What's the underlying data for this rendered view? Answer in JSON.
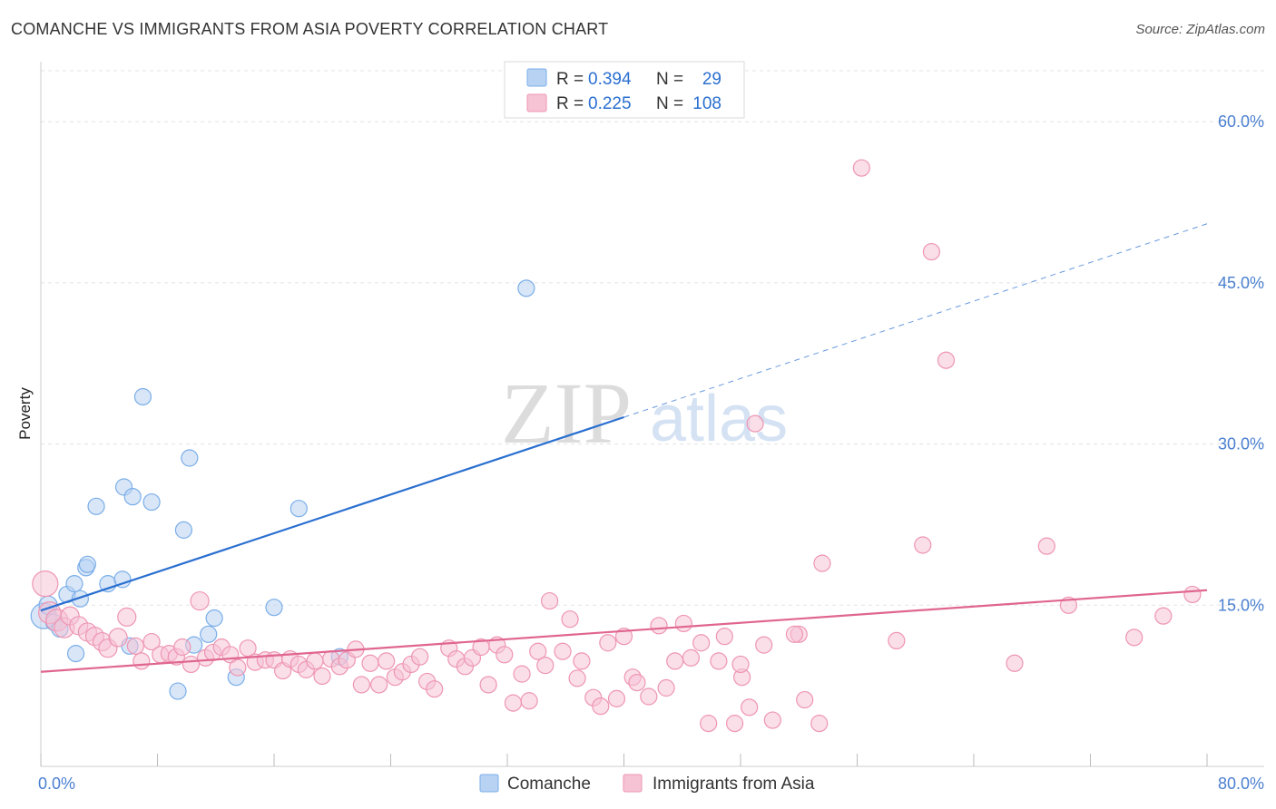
{
  "header": {
    "title": "COMANCHE VS IMMIGRANTS FROM ASIA POVERTY CORRELATION CHART",
    "source": "Source: ZipAtlas.com"
  },
  "watermark": {
    "zip": "ZIP",
    "atlas": "atlas"
  },
  "colors": {
    "blue": "#7aaee8",
    "blue_fill": "#b8d2f3",
    "blue_line": "#2a6fd0",
    "pink": "#ee95b3",
    "pink_fill": "#f6c3d5",
    "pink_line": "#e0668f",
    "tick_text": "#4a7fd0",
    "grid": "#e3e3e3"
  },
  "legend": {
    "rows": [
      {
        "r_label": "R = ",
        "r_value": "0.394",
        "n_label": "N = ",
        "n_value": "29"
      },
      {
        "r_label": "R = ",
        "r_value": "0.225",
        "n_label": "N = ",
        "n_value": "108"
      }
    ]
  },
  "bottom_legend": {
    "items": [
      "Comanche",
      "Immigrants from Asia"
    ]
  },
  "chart_data": {
    "type": "scatter",
    "title": "COMANCHE VS IMMIGRANTS FROM ASIA POVERTY CORRELATION CHART",
    "xlabel": "",
    "ylabel": "Poverty",
    "xlim": [
      0,
      80
    ],
    "ylim": [
      0,
      65
    ],
    "x_ticks": [
      "0.0%",
      "80.0%"
    ],
    "y_ticks": [
      {
        "value": 15,
        "label": "15.0%"
      },
      {
        "value": 30,
        "label": "30.0%"
      },
      {
        "value": 45,
        "label": "45.0%"
      },
      {
        "value": 60,
        "label": "60.0%"
      }
    ],
    "grid": true,
    "legend_position": "top-center",
    "series": [
      {
        "name": "Comanche",
        "r": 0.394,
        "n": 29,
        "trend": {
          "x0": 0,
          "y0": 14.5,
          "x1": 40,
          "y1": 32.5,
          "dashed_to_x": 80,
          "dashed_to_y": 50.5
        },
        "points": [
          [
            0.2,
            14.0,
            14
          ],
          [
            0.5,
            15.0,
            10
          ],
          [
            0.9,
            13.4,
            9
          ],
          [
            1.3,
            12.8,
            9
          ],
          [
            1.8,
            16.0,
            9
          ],
          [
            2.3,
            17.0,
            9
          ],
          [
            2.4,
            10.5,
            9
          ],
          [
            2.7,
            15.6,
            9
          ],
          [
            3.1,
            18.5,
            9
          ],
          [
            3.8,
            24.2,
            9
          ],
          [
            4.6,
            17.0,
            9
          ],
          [
            5.6,
            17.4,
            9
          ],
          [
            5.7,
            26.0,
            9
          ],
          [
            6.3,
            25.1,
            9
          ],
          [
            7.0,
            34.4,
            9
          ],
          [
            7.6,
            24.6,
            9
          ],
          [
            9.4,
            7.0,
            9
          ],
          [
            9.8,
            22.0,
            9
          ],
          [
            10.2,
            28.7,
            9
          ],
          [
            10.5,
            11.3,
            9
          ],
          [
            11.5,
            12.3,
            9
          ],
          [
            11.9,
            13.8,
            9
          ],
          [
            13.4,
            8.3,
            9
          ],
          [
            16.0,
            14.8,
            9
          ],
          [
            17.7,
            24.0,
            9
          ],
          [
            20.5,
            10.2,
            9
          ],
          [
            33.3,
            44.5,
            9
          ],
          [
            6.1,
            11.2,
            9
          ],
          [
            3.2,
            18.8,
            9
          ]
        ]
      },
      {
        "name": "Immigrants from Asia",
        "r": 0.225,
        "n": 108,
        "trend": {
          "x0": 0,
          "y0": 8.8,
          "x1": 80,
          "y1": 16.4
        },
        "points": [
          [
            0.3,
            17.0,
            14
          ],
          [
            0.6,
            14.3,
            12
          ],
          [
            1.1,
            13.6,
            12
          ],
          [
            1.6,
            12.9,
            11
          ],
          [
            2.0,
            14.0,
            10
          ],
          [
            2.6,
            13.1,
            10
          ],
          [
            3.2,
            12.5,
            10
          ],
          [
            3.7,
            12.1,
            10
          ],
          [
            4.2,
            11.6,
            10
          ],
          [
            4.6,
            11.0,
            10
          ],
          [
            5.3,
            12.0,
            10
          ],
          [
            5.9,
            13.9,
            10
          ],
          [
            6.5,
            11.2,
            9
          ],
          [
            6.9,
            9.8,
            9
          ],
          [
            7.6,
            11.6,
            9
          ],
          [
            8.2,
            10.4,
            9
          ],
          [
            8.8,
            10.5,
            9
          ],
          [
            9.3,
            10.2,
            9
          ],
          [
            9.7,
            11.1,
            9
          ],
          [
            10.3,
            9.5,
            9
          ],
          [
            10.9,
            15.4,
            10
          ],
          [
            11.3,
            10.1,
            9
          ],
          [
            11.8,
            10.6,
            9
          ],
          [
            12.4,
            11.1,
            9
          ],
          [
            13.0,
            10.4,
            9
          ],
          [
            13.5,
            9.2,
            9
          ],
          [
            14.2,
            11.0,
            9
          ],
          [
            14.7,
            9.7,
            9
          ],
          [
            15.4,
            9.9,
            9
          ],
          [
            16.0,
            9.9,
            9
          ],
          [
            16.6,
            8.9,
            9
          ],
          [
            17.1,
            10.0,
            9
          ],
          [
            17.7,
            9.5,
            9
          ],
          [
            18.2,
            9.0,
            9
          ],
          [
            18.8,
            9.8,
            9
          ],
          [
            19.3,
            8.4,
            9
          ],
          [
            19.9,
            10.0,
            9
          ],
          [
            20.5,
            9.3,
            9
          ],
          [
            21.0,
            9.9,
            9
          ],
          [
            21.6,
            10.9,
            9
          ],
          [
            22.0,
            7.6,
            9
          ],
          [
            22.6,
            9.6,
            9
          ],
          [
            23.2,
            7.6,
            9
          ],
          [
            23.7,
            9.8,
            9
          ],
          [
            24.3,
            8.3,
            9
          ],
          [
            24.8,
            8.8,
            9
          ],
          [
            25.4,
            9.5,
            9
          ],
          [
            26.0,
            10.2,
            9
          ],
          [
            26.5,
            7.9,
            9
          ],
          [
            27.0,
            7.2,
            9
          ],
          [
            28.0,
            11.0,
            9
          ],
          [
            28.5,
            10.0,
            9
          ],
          [
            29.1,
            9.3,
            9
          ],
          [
            29.6,
            10.1,
            9
          ],
          [
            30.2,
            11.1,
            9
          ],
          [
            30.7,
            7.6,
            9
          ],
          [
            31.3,
            11.3,
            9
          ],
          [
            31.8,
            10.4,
            9
          ],
          [
            32.4,
            5.9,
            9
          ],
          [
            33.0,
            8.6,
            9
          ],
          [
            33.5,
            6.1,
            9
          ],
          [
            34.1,
            10.7,
            9
          ],
          [
            34.6,
            9.4,
            9
          ],
          [
            34.9,
            15.4,
            9
          ],
          [
            35.8,
            10.7,
            9
          ],
          [
            36.3,
            13.7,
            9
          ],
          [
            36.8,
            8.2,
            9
          ],
          [
            37.1,
            9.8,
            9
          ],
          [
            37.9,
            6.4,
            9
          ],
          [
            38.4,
            5.6,
            9
          ],
          [
            38.9,
            11.5,
            9
          ],
          [
            39.5,
            6.3,
            9
          ],
          [
            40.0,
            12.1,
            9
          ],
          [
            40.6,
            8.3,
            9
          ],
          [
            40.9,
            7.8,
            9
          ],
          [
            41.7,
            6.5,
            9
          ],
          [
            42.4,
            13.1,
            9
          ],
          [
            42.9,
            7.3,
            9
          ],
          [
            43.5,
            9.8,
            9
          ],
          [
            44.1,
            13.3,
            9
          ],
          [
            44.6,
            10.1,
            9
          ],
          [
            45.3,
            11.5,
            9
          ],
          [
            45.8,
            4.0,
            9
          ],
          [
            46.5,
            9.8,
            9
          ],
          [
            46.9,
            12.1,
            9
          ],
          [
            47.6,
            4.0,
            9
          ],
          [
            48.1,
            8.3,
            9
          ],
          [
            48.6,
            5.5,
            9
          ],
          [
            49.0,
            31.9,
            9
          ],
          [
            49.6,
            11.3,
            9
          ],
          [
            50.2,
            4.3,
            9
          ],
          [
            52.0,
            12.3,
            9
          ],
          [
            52.4,
            6.2,
            9
          ],
          [
            53.4,
            4.0,
            9
          ],
          [
            53.6,
            18.9,
            9
          ],
          [
            58.7,
            11.7,
            9
          ],
          [
            60.5,
            20.6,
            9
          ],
          [
            61.1,
            47.9,
            9
          ],
          [
            62.1,
            37.8,
            9
          ],
          [
            66.8,
            9.6,
            9
          ],
          [
            69.0,
            20.5,
            9
          ],
          [
            70.5,
            15.0,
            9
          ],
          [
            75.0,
            12.0,
            9
          ],
          [
            77.0,
            14.0,
            9
          ],
          [
            79.0,
            16.0,
            9
          ],
          [
            56.3,
            55.7,
            9
          ],
          [
            51.7,
            12.3,
            9
          ],
          [
            48.0,
            9.5,
            9
          ]
        ]
      }
    ]
  }
}
